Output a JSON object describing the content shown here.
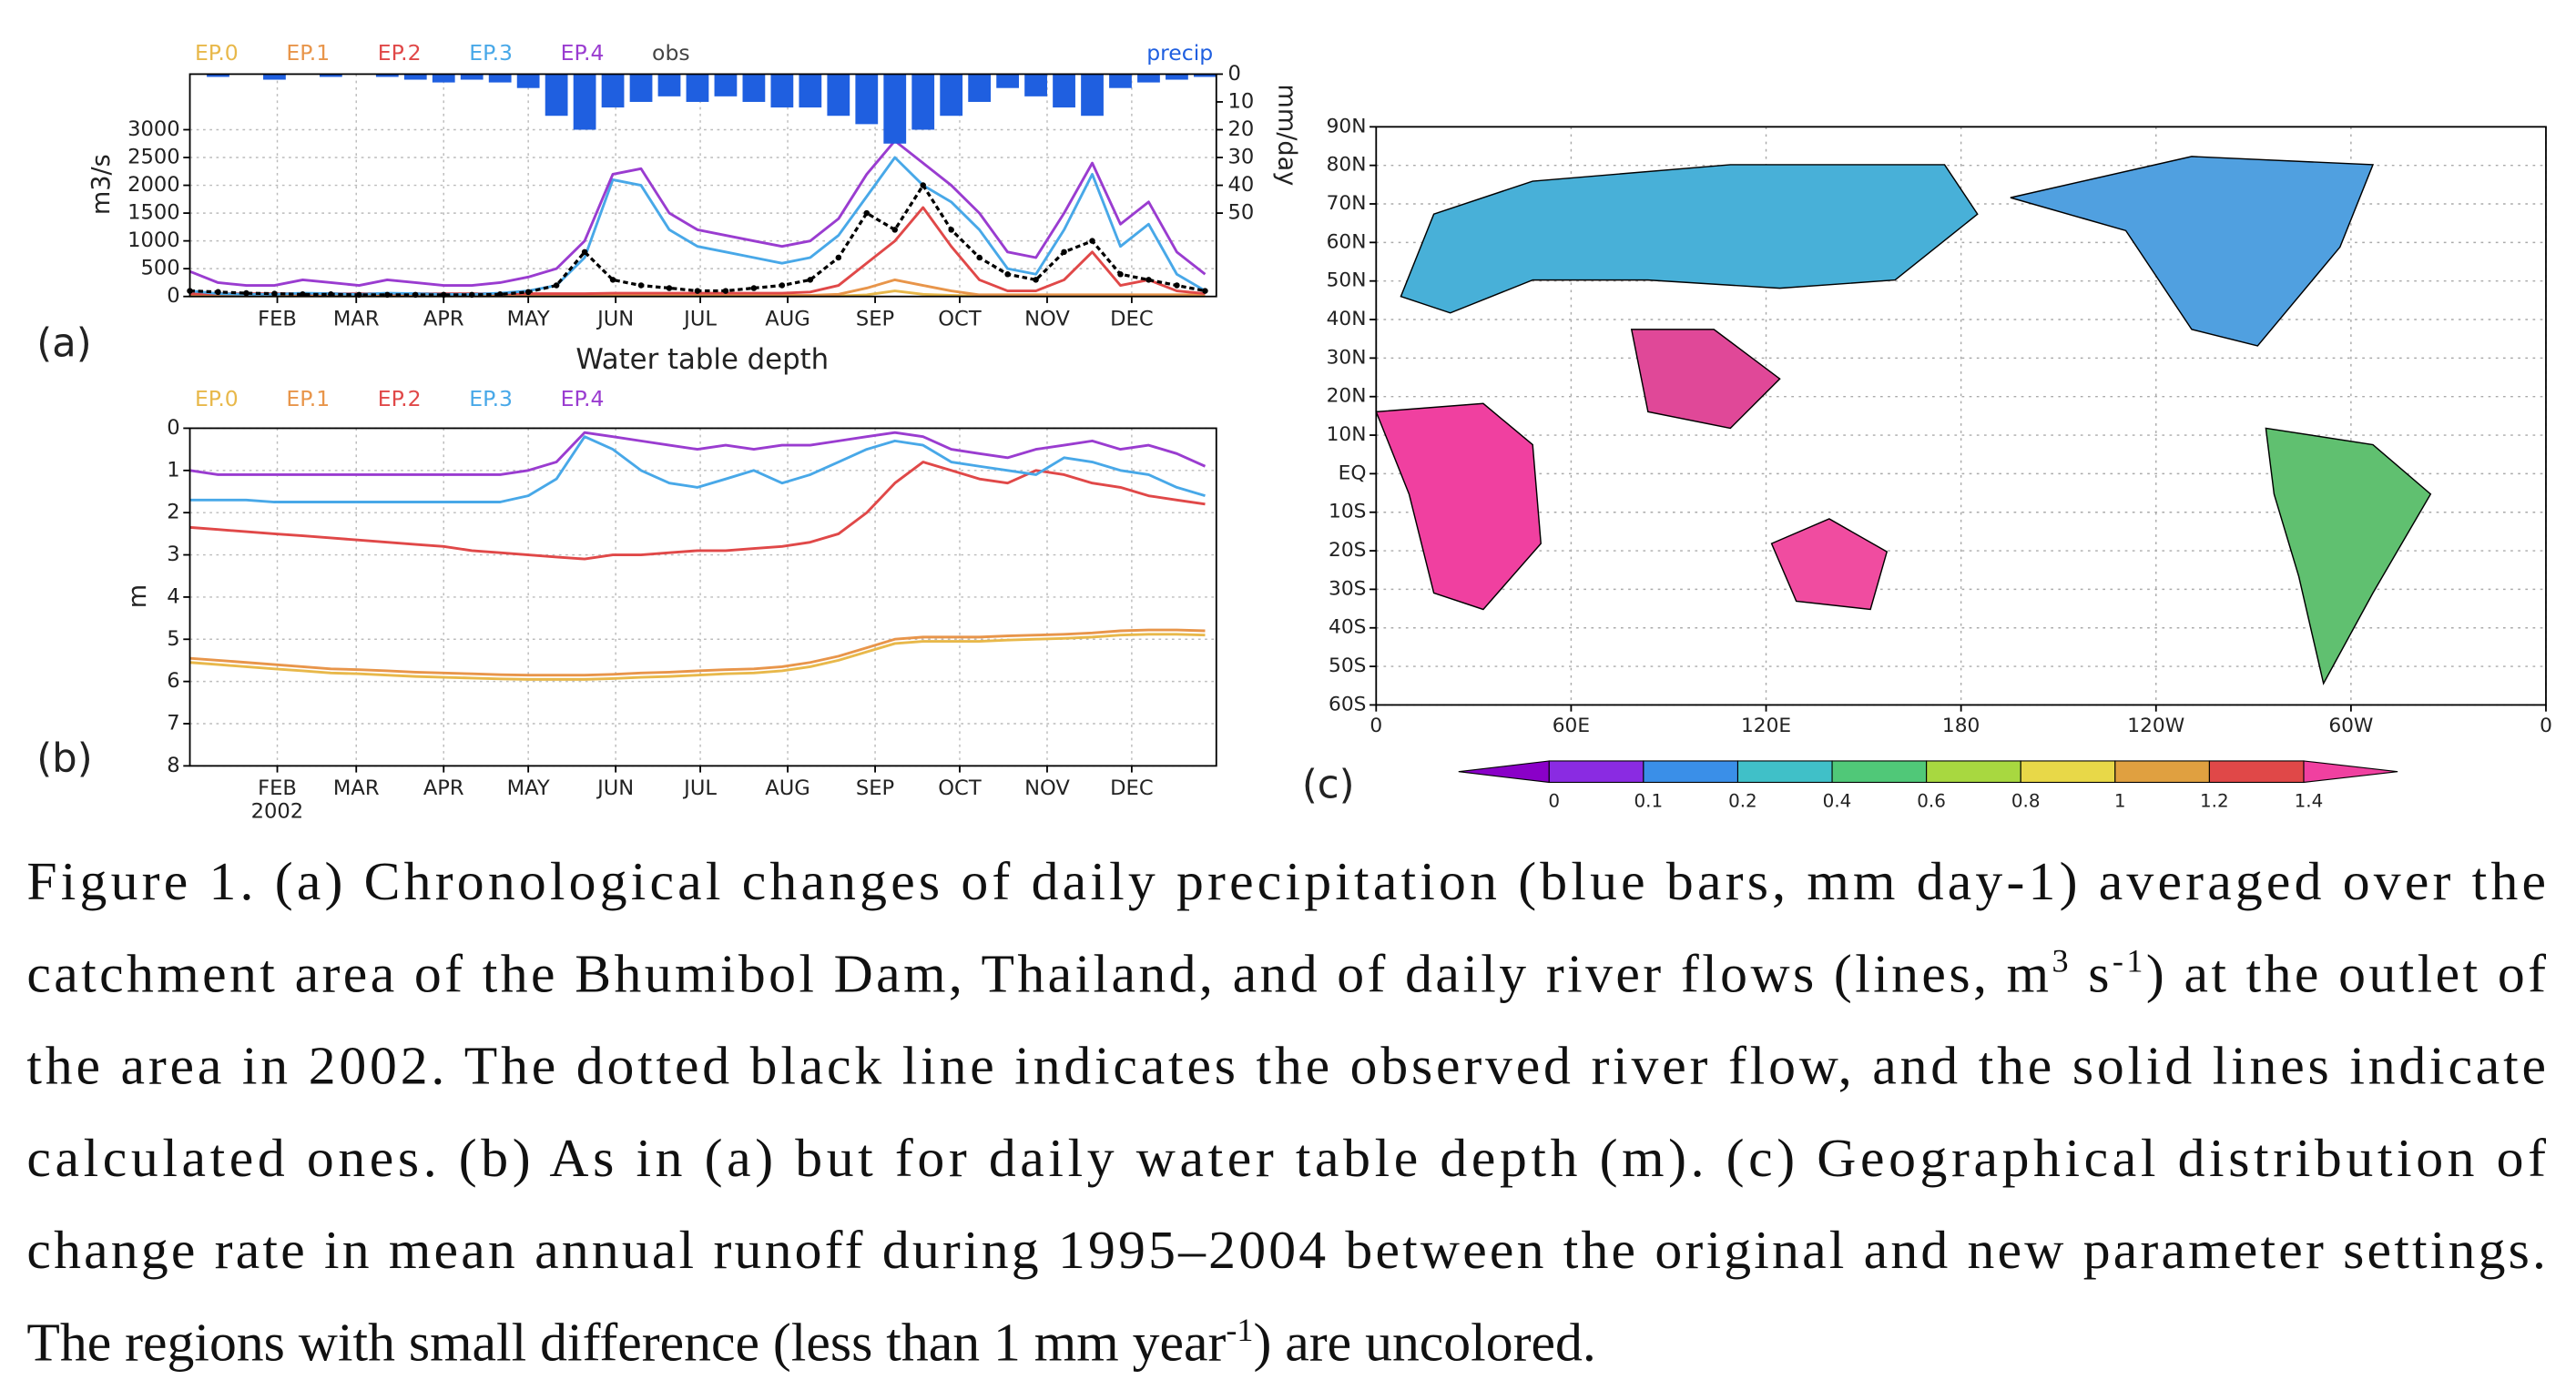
{
  "chart_data": [
    {
      "type": "line",
      "label": "(a)",
      "ylabel": "m3/s",
      "y2label": "mm/day",
      "x": [
        1,
        11,
        21,
        31,
        41,
        51,
        61,
        71,
        81,
        91,
        101,
        111,
        121,
        131,
        141,
        151,
        161,
        171,
        181,
        191,
        201,
        211,
        221,
        231,
        241,
        251,
        261,
        271,
        281,
        291,
        301,
        311,
        321,
        331,
        341,
        351,
        361
      ],
      "xlim": [
        1,
        365
      ],
      "xticks": [
        {
          "value": 32,
          "label": "FEB"
        },
        {
          "value": 60,
          "label": "MAR"
        },
        {
          "value": 91,
          "label": "APR"
        },
        {
          "value": 121,
          "label": "MAY"
        },
        {
          "value": 152,
          "label": "JUN"
        },
        {
          "value": 182,
          "label": "JUL"
        },
        {
          "value": 213,
          "label": "AUG"
        },
        {
          "value": 244,
          "label": "SEP"
        },
        {
          "value": 274,
          "label": "OCT"
        },
        {
          "value": 305,
          "label": "NOV"
        },
        {
          "value": 335,
          "label": "DEC"
        }
      ],
      "ylim": [
        0,
        4000
      ],
      "yticks": [
        0,
        500,
        1000,
        1500,
        2000,
        2500,
        3000
      ],
      "y2lim": [
        80,
        0
      ],
      "y2ticks": [
        0,
        10,
        20,
        30,
        40,
        50
      ],
      "grid": true,
      "series": [
        {
          "name": "EP.0",
          "color": "#e8b84a",
          "values": [
            10,
            10,
            10,
            10,
            10,
            10,
            10,
            10,
            10,
            10,
            10,
            10,
            10,
            10,
            10,
            10,
            10,
            10,
            10,
            10,
            10,
            10,
            10,
            10,
            30,
            100,
            40,
            20,
            10,
            10,
            10,
            10,
            10,
            10,
            10,
            10,
            10
          ]
        },
        {
          "name": "EP.1",
          "color": "#e8954a",
          "values": [
            20,
            20,
            20,
            20,
            20,
            20,
            20,
            20,
            20,
            20,
            20,
            20,
            20,
            20,
            20,
            20,
            20,
            20,
            20,
            20,
            20,
            20,
            20,
            40,
            150,
            300,
            200,
            100,
            30,
            30,
            30,
            30,
            30,
            30,
            30,
            30,
            30
          ]
        },
        {
          "name": "EP.2",
          "color": "#e04848",
          "values": [
            50,
            50,
            50,
            50,
            50,
            50,
            50,
            50,
            50,
            50,
            50,
            50,
            50,
            50,
            50,
            60,
            60,
            60,
            60,
            60,
            60,
            60,
            80,
            200,
            600,
            1000,
            1600,
            900,
            300,
            100,
            100,
            300,
            800,
            200,
            300,
            100,
            50
          ]
        },
        {
          "name": "EP.3",
          "color": "#48a8e8",
          "values": [
            100,
            50,
            40,
            40,
            60,
            50,
            40,
            60,
            50,
            40,
            40,
            60,
            100,
            200,
            700,
            2100,
            2000,
            1200,
            900,
            800,
            700,
            600,
            700,
            1100,
            1800,
            2500,
            2000,
            1700,
            1200,
            500,
            400,
            1200,
            2200,
            900,
            1300,
            400,
            100
          ]
        },
        {
          "name": "EP.4",
          "color": "#9a3cd0",
          "values": [
            450,
            250,
            200,
            200,
            300,
            250,
            200,
            300,
            250,
            200,
            200,
            250,
            350,
            500,
            1000,
            2200,
            2300,
            1500,
            1200,
            1100,
            1000,
            900,
            1000,
            1400,
            2200,
            2800,
            2400,
            2000,
            1500,
            800,
            700,
            1500,
            2400,
            1300,
            1700,
            800,
            400
          ]
        },
        {
          "name": "obs",
          "color": "#000000",
          "values": [
            100,
            80,
            60,
            50,
            40,
            40,
            30,
            30,
            30,
            30,
            30,
            40,
            80,
            200,
            800,
            300,
            200,
            150,
            100,
            100,
            150,
            200,
            300,
            700,
            1500,
            1200,
            2000,
            1200,
            700,
            400,
            300,
            800,
            1000,
            400,
            300,
            200,
            100
          ]
        },
        {
          "name": "precip",
          "color": "#1f5fe0",
          "type": "bar",
          "axis": "y2",
          "values": [
            0,
            1,
            0,
            2,
            0,
            1,
            0,
            1,
            2,
            3,
            2,
            3,
            5,
            15,
            20,
            12,
            10,
            8,
            10,
            8,
            10,
            12,
            12,
            15,
            18,
            25,
            20,
            15,
            10,
            5,
            8,
            12,
            15,
            5,
            3,
            2,
            1
          ]
        }
      ]
    },
    {
      "type": "line",
      "label": "(b)",
      "title": "Water table depth",
      "ylabel": "m",
      "year": "2002",
      "x": [
        1,
        11,
        21,
        31,
        41,
        51,
        61,
        71,
        81,
        91,
        101,
        111,
        121,
        131,
        141,
        151,
        161,
        171,
        181,
        191,
        201,
        211,
        221,
        231,
        241,
        251,
        261,
        271,
        281,
        291,
        301,
        311,
        321,
        331,
        341,
        351,
        361
      ],
      "xlim": [
        1,
        365
      ],
      "xticks": [
        {
          "value": 32,
          "label": "FEB"
        },
        {
          "value": 60,
          "label": "MAR"
        },
        {
          "value": 91,
          "label": "APR"
        },
        {
          "value": 121,
          "label": "MAY"
        },
        {
          "value": 152,
          "label": "JUN"
        },
        {
          "value": 182,
          "label": "JUL"
        },
        {
          "value": 213,
          "label": "AUG"
        },
        {
          "value": 244,
          "label": "SEP"
        },
        {
          "value": 274,
          "label": "OCT"
        },
        {
          "value": 305,
          "label": "NOV"
        },
        {
          "value": 335,
          "label": "DEC"
        }
      ],
      "ylim": [
        8,
        0
      ],
      "yticks": [
        0,
        1,
        2,
        3,
        4,
        5,
        6,
        7,
        8
      ],
      "grid": true,
      "series": [
        {
          "name": "EP.0",
          "color": "#e8b84a",
          "values": [
            5.55,
            5.6,
            5.65,
            5.7,
            5.75,
            5.8,
            5.82,
            5.85,
            5.88,
            5.9,
            5.92,
            5.94,
            5.95,
            5.95,
            5.95,
            5.93,
            5.9,
            5.88,
            5.85,
            5.82,
            5.8,
            5.75,
            5.65,
            5.5,
            5.3,
            5.1,
            5.05,
            5.05,
            5.05,
            5.02,
            5.0,
            4.98,
            4.95,
            4.9,
            4.88,
            4.88,
            4.9
          ]
        },
        {
          "name": "EP.1",
          "color": "#e8954a",
          "values": [
            5.45,
            5.5,
            5.55,
            5.6,
            5.65,
            5.7,
            5.72,
            5.75,
            5.78,
            5.8,
            5.82,
            5.84,
            5.85,
            5.85,
            5.85,
            5.83,
            5.8,
            5.78,
            5.75,
            5.72,
            5.7,
            5.65,
            5.55,
            5.4,
            5.2,
            5.0,
            4.95,
            4.95,
            4.95,
            4.92,
            4.9,
            4.88,
            4.85,
            4.8,
            4.78,
            4.78,
            4.8
          ]
        },
        {
          "name": "EP.2",
          "color": "#e04848",
          "values": [
            2.35,
            2.4,
            2.45,
            2.5,
            2.55,
            2.6,
            2.65,
            2.7,
            2.75,
            2.8,
            2.9,
            2.95,
            3.0,
            3.05,
            3.1,
            3.0,
            3.0,
            2.95,
            2.9,
            2.9,
            2.85,
            2.8,
            2.7,
            2.5,
            2.0,
            1.3,
            0.8,
            1.0,
            1.2,
            1.3,
            1.0,
            1.1,
            1.3,
            1.4,
            1.6,
            1.7,
            1.8
          ]
        },
        {
          "name": "EP.3",
          "color": "#48a8e8",
          "values": [
            1.7,
            1.7,
            1.7,
            1.75,
            1.75,
            1.75,
            1.75,
            1.75,
            1.75,
            1.75,
            1.75,
            1.75,
            1.6,
            1.2,
            0.2,
            0.5,
            1.0,
            1.3,
            1.4,
            1.2,
            1.0,
            1.3,
            1.1,
            0.8,
            0.5,
            0.3,
            0.4,
            0.8,
            0.9,
            1.0,
            1.1,
            0.7,
            0.8,
            1.0,
            1.1,
            1.4,
            1.6
          ]
        },
        {
          "name": "EP.4",
          "color": "#9a3cd0",
          "values": [
            1.0,
            1.1,
            1.1,
            1.1,
            1.1,
            1.1,
            1.1,
            1.1,
            1.1,
            1.1,
            1.1,
            1.1,
            1.0,
            0.8,
            0.1,
            0.2,
            0.3,
            0.4,
            0.5,
            0.4,
            0.5,
            0.4,
            0.4,
            0.3,
            0.2,
            0.1,
            0.2,
            0.5,
            0.6,
            0.7,
            0.5,
            0.4,
            0.3,
            0.5,
            0.4,
            0.6,
            0.9
          ]
        }
      ]
    }
  ],
  "map": {
    "label": "(c)",
    "xlim": [
      0,
      360
    ],
    "xticks": [
      0,
      {
        "value": 60,
        "label": "60E"
      },
      {
        "value": 120,
        "label": "120E"
      },
      180,
      {
        "value": 240,
        "label": "120W"
      },
      {
        "value": 300,
        "label": "60W"
      },
      {
        "value": 360,
        "label": "0"
      }
    ],
    "ylim": [
      -60,
      90
    ],
    "yticks": [
      {
        "value": -60,
        "label": "60S"
      },
      {
        "value": -50,
        "label": "50S"
      },
      {
        "value": -40,
        "label": "40S"
      },
      {
        "value": -30,
        "label": "30S"
      },
      {
        "value": -20,
        "label": "20S"
      },
      {
        "value": -10,
        "label": "10S"
      },
      {
        "value": 0,
        "label": "EQ"
      },
      {
        "value": 10,
        "label": "10N"
      },
      {
        "value": 20,
        "label": "20N"
      },
      {
        "value": 30,
        "label": "30N"
      },
      {
        "value": 40,
        "label": "40N"
      },
      {
        "value": 50,
        "label": "50N"
      },
      {
        "value": 60,
        "label": "60N"
      },
      {
        "value": 70,
        "label": "70N"
      },
      {
        "value": 80,
        "label": "80N"
      },
      {
        "value": 90,
        "label": "90N"
      }
    ],
    "colorbar": {
      "levels": [
        0,
        0.1,
        0.2,
        0.4,
        0.6,
        0.8,
        1,
        1.2,
        1.4
      ],
      "colors": [
        "#8a00c8",
        "#8a2be2",
        "#3a8fe8",
        "#40c0c8",
        "#50c878",
        "#a8d840",
        "#e8d848",
        "#e0a040",
        "#e04848",
        "#f040a0"
      ]
    }
  },
  "caption": {
    "lines": [
      [
        "Figure 1. (a) Chronological changes of daily precipitation (blue bars, mm day-1) averaged over the"
      ],
      [
        "catchment area of the Bhumibol Dam, Thailand, and of daily river flows (lines, m",
        "3",
        " s",
        "-1",
        ") at the outlet of"
      ],
      [
        "the area in 2002. The dotted black line indicates the observed river flow, and the solid lines indicate"
      ],
      [
        "calculated ones. (b) As in (a) but for daily water table depth (m). (c) Geographical distribution of"
      ],
      [
        "change rate in mean annual runoff during 1995–2004 between the original and new parameter settings."
      ],
      [
        "The regions with small difference (less than 1 mm year",
        "-1",
        ") are uncolored."
      ]
    ]
  }
}
